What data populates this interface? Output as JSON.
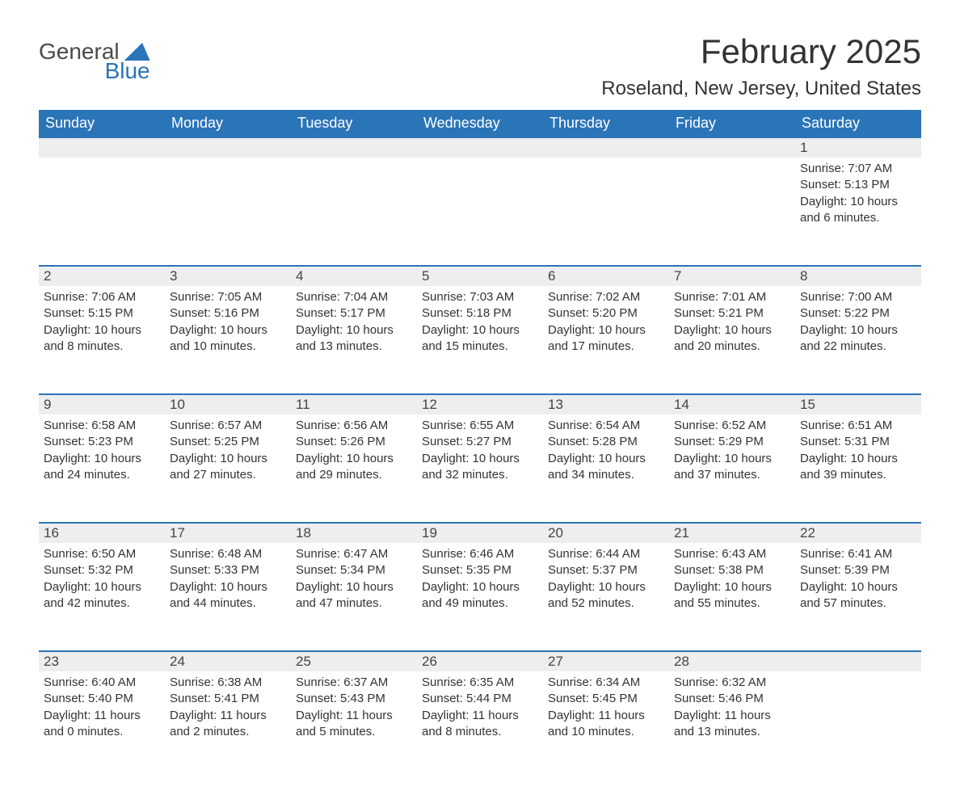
{
  "logo": {
    "word1": "General",
    "word2": "Blue",
    "flag_color": "#2a74b8"
  },
  "title": "February 2025",
  "location": "Roseland, New Jersey, United States",
  "colors": {
    "header_bg": "#2a74b8",
    "header_fg": "#ffffff",
    "daynum_bg": "#eeeeee",
    "row_border": "#2a74b8",
    "text": "#333333"
  },
  "day_headers": [
    "Sunday",
    "Monday",
    "Tuesday",
    "Wednesday",
    "Thursday",
    "Friday",
    "Saturday"
  ],
  "weeks": [
    [
      null,
      null,
      null,
      null,
      null,
      null,
      {
        "n": "1",
        "sunrise": "7:07 AM",
        "sunset": "5:13 PM",
        "daylight": "10 hours and 6 minutes."
      }
    ],
    [
      {
        "n": "2",
        "sunrise": "7:06 AM",
        "sunset": "5:15 PM",
        "daylight": "10 hours and 8 minutes."
      },
      {
        "n": "3",
        "sunrise": "7:05 AM",
        "sunset": "5:16 PM",
        "daylight": "10 hours and 10 minutes."
      },
      {
        "n": "4",
        "sunrise": "7:04 AM",
        "sunset": "5:17 PM",
        "daylight": "10 hours and 13 minutes."
      },
      {
        "n": "5",
        "sunrise": "7:03 AM",
        "sunset": "5:18 PM",
        "daylight": "10 hours and 15 minutes."
      },
      {
        "n": "6",
        "sunrise": "7:02 AM",
        "sunset": "5:20 PM",
        "daylight": "10 hours and 17 minutes."
      },
      {
        "n": "7",
        "sunrise": "7:01 AM",
        "sunset": "5:21 PM",
        "daylight": "10 hours and 20 minutes."
      },
      {
        "n": "8",
        "sunrise": "7:00 AM",
        "sunset": "5:22 PM",
        "daylight": "10 hours and 22 minutes."
      }
    ],
    [
      {
        "n": "9",
        "sunrise": "6:58 AM",
        "sunset": "5:23 PM",
        "daylight": "10 hours and 24 minutes."
      },
      {
        "n": "10",
        "sunrise": "6:57 AM",
        "sunset": "5:25 PM",
        "daylight": "10 hours and 27 minutes."
      },
      {
        "n": "11",
        "sunrise": "6:56 AM",
        "sunset": "5:26 PM",
        "daylight": "10 hours and 29 minutes."
      },
      {
        "n": "12",
        "sunrise": "6:55 AM",
        "sunset": "5:27 PM",
        "daylight": "10 hours and 32 minutes."
      },
      {
        "n": "13",
        "sunrise": "6:54 AM",
        "sunset": "5:28 PM",
        "daylight": "10 hours and 34 minutes."
      },
      {
        "n": "14",
        "sunrise": "6:52 AM",
        "sunset": "5:29 PM",
        "daylight": "10 hours and 37 minutes."
      },
      {
        "n": "15",
        "sunrise": "6:51 AM",
        "sunset": "5:31 PM",
        "daylight": "10 hours and 39 minutes."
      }
    ],
    [
      {
        "n": "16",
        "sunrise": "6:50 AM",
        "sunset": "5:32 PM",
        "daylight": "10 hours and 42 minutes."
      },
      {
        "n": "17",
        "sunrise": "6:48 AM",
        "sunset": "5:33 PM",
        "daylight": "10 hours and 44 minutes."
      },
      {
        "n": "18",
        "sunrise": "6:47 AM",
        "sunset": "5:34 PM",
        "daylight": "10 hours and 47 minutes."
      },
      {
        "n": "19",
        "sunrise": "6:46 AM",
        "sunset": "5:35 PM",
        "daylight": "10 hours and 49 minutes."
      },
      {
        "n": "20",
        "sunrise": "6:44 AM",
        "sunset": "5:37 PM",
        "daylight": "10 hours and 52 minutes."
      },
      {
        "n": "21",
        "sunrise": "6:43 AM",
        "sunset": "5:38 PM",
        "daylight": "10 hours and 55 minutes."
      },
      {
        "n": "22",
        "sunrise": "6:41 AM",
        "sunset": "5:39 PM",
        "daylight": "10 hours and 57 minutes."
      }
    ],
    [
      {
        "n": "23",
        "sunrise": "6:40 AM",
        "sunset": "5:40 PM",
        "daylight": "11 hours and 0 minutes."
      },
      {
        "n": "24",
        "sunrise": "6:38 AM",
        "sunset": "5:41 PM",
        "daylight": "11 hours and 2 minutes."
      },
      {
        "n": "25",
        "sunrise": "6:37 AM",
        "sunset": "5:43 PM",
        "daylight": "11 hours and 5 minutes."
      },
      {
        "n": "26",
        "sunrise": "6:35 AM",
        "sunset": "5:44 PM",
        "daylight": "11 hours and 8 minutes."
      },
      {
        "n": "27",
        "sunrise": "6:34 AM",
        "sunset": "5:45 PM",
        "daylight": "11 hours and 10 minutes."
      },
      {
        "n": "28",
        "sunrise": "6:32 AM",
        "sunset": "5:46 PM",
        "daylight": "11 hours and 13 minutes."
      },
      null
    ]
  ],
  "labels": {
    "sunrise": "Sunrise: ",
    "sunset": "Sunset: ",
    "daylight": "Daylight: "
  }
}
